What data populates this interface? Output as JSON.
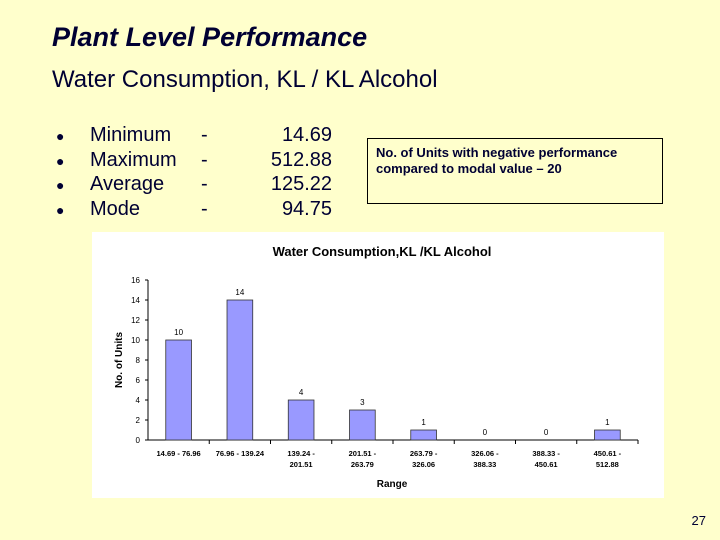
{
  "slide": {
    "title": "Plant Level Performance",
    "subtitle": "Water Consumption, KL / KL Alcohol",
    "stats": [
      {
        "label": "Minimum",
        "dash": "-",
        "value": "14.69"
      },
      {
        "label": "Maximum",
        "dash": "-",
        "value": "512.88"
      },
      {
        "label": "Average",
        "dash": "-",
        "value": "125.22"
      },
      {
        "label": "Mode",
        "dash": "-",
        "value": "94.75"
      }
    ],
    "note": "No. of Units with negative performance compared to modal value – 20",
    "page_number": "27"
  },
  "chart_data": {
    "type": "bar",
    "title": "Water Consumption,KL /KL Alcohol",
    "xlabel": "Range",
    "ylabel": "No. of Units",
    "ylim": [
      0,
      16
    ],
    "yticks": [
      0,
      2,
      4,
      6,
      8,
      10,
      12,
      14,
      16
    ],
    "categories": [
      [
        "14.69 - 76.96"
      ],
      [
        "76.96 - 139.24"
      ],
      [
        "139.24 -",
        "201.51"
      ],
      [
        "201.51 -",
        "263.79"
      ],
      [
        "263.79 -",
        "326.06"
      ],
      [
        "326.06 -",
        "388.33"
      ],
      [
        "388.33 -",
        "450.61"
      ],
      [
        "450.61 -",
        "512.88"
      ]
    ],
    "values": [
      10,
      14,
      4,
      3,
      1,
      0,
      0,
      1
    ],
    "bar_color": "#9999ff",
    "grid": false,
    "legend": "none"
  }
}
